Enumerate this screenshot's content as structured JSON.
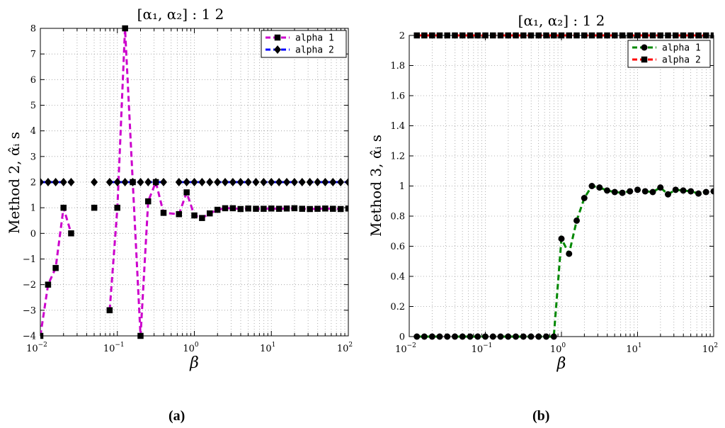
{
  "chart_data": [
    {
      "type": "line",
      "panel_label": "(a)",
      "title": "[α₁, α₂] : 1 2",
      "xlabel": "β",
      "ylabel": "Method 2, α̂ᵢ s",
      "xscale": "log",
      "xlim": [
        0.01,
        100
      ],
      "ylim": [
        -4,
        8
      ],
      "yticks": [
        -4,
        -3,
        -2,
        -1,
        0,
        1,
        2,
        3,
        4,
        5,
        6,
        7,
        8
      ],
      "ytick_labels": [
        "−4",
        "−3",
        "−2",
        "−1",
        "0",
        "1",
        "2",
        "3",
        "4",
        "5",
        "6",
        "7",
        "8"
      ],
      "xtick_labels": [
        {
          "base": "10",
          "exp": "−2"
        },
        {
          "base": "10",
          "exp": "−1"
        },
        {
          "base": "10",
          "exp": "0"
        },
        {
          "base": "10",
          "exp": "1"
        },
        {
          "base": "10",
          "exp": "2"
        }
      ],
      "grid": true,
      "legend_position": "top-right",
      "series": [
        {
          "name": "alpha 1",
          "color": "#cc00cc",
          "marker": "square",
          "x": [
            0.01,
            0.0126,
            0.0158,
            0.02,
            0.0251,
            0.0501,
            0.0794,
            0.1,
            0.1259,
            0.1585,
            0.2,
            0.2512,
            0.3162,
            0.3981,
            0.631,
            0.7943,
            1.0,
            1.2589,
            1.5849,
            1.9953,
            2.5119,
            3.1623,
            3.9811,
            5.0119,
            6.3096,
            7.9433,
            10.0,
            12.5893,
            15.8489,
            19.9526,
            25.1189,
            31.6228,
            39.8107,
            50.1187,
            63.0957,
            79.4328,
            100.0
          ],
          "y": [
            -4,
            -2,
            -1.35,
            1,
            0,
            1,
            -3,
            1,
            8,
            2,
            -4,
            1.25,
            2,
            0.8,
            0.75,
            1.6,
            0.7,
            0.6,
            0.78,
            0.92,
            0.98,
            0.98,
            0.95,
            0.97,
            0.96,
            0.96,
            0.97,
            0.96,
            0.97,
            0.98,
            0.96,
            0.95,
            0.96,
            0.97,
            0.96,
            0.95,
            0.97
          ],
          "line_breaks_after_index": [
            4,
            5
          ]
        },
        {
          "name": "alpha 2",
          "color": "#0000ff",
          "marker": "diamond",
          "x": [
            0.01,
            0.0126,
            0.0158,
            0.02,
            0.0251,
            0.0501,
            0.0794,
            0.1,
            0.1259,
            0.1585,
            0.2,
            0.2512,
            0.3162,
            0.3981,
            0.631,
            0.7943,
            1.0,
            1.2589,
            1.5849,
            1.9953,
            2.5119,
            3.1623,
            3.9811,
            5.0119,
            6.3096,
            7.9433,
            10.0,
            12.5893,
            15.8489,
            19.9526,
            25.1189,
            31.6228,
            39.8107,
            50.1187,
            63.0957,
            79.4328,
            100.0
          ],
          "y": [
            2,
            2,
            2,
            2,
            2,
            2,
            2,
            2,
            2,
            2,
            2,
            2,
            2,
            2,
            2,
            2,
            2,
            2,
            2,
            2,
            2,
            2,
            2,
            2,
            2,
            2,
            2,
            2,
            2,
            2,
            2,
            2,
            2,
            2,
            2,
            2,
            2
          ],
          "line_breaks_after_index": [
            4,
            5,
            13
          ]
        }
      ]
    },
    {
      "type": "line",
      "panel_label": "(b)",
      "title": "[α₁, α₂] : 1 2",
      "xlabel": "β",
      "ylabel": "Method 3, α̂ᵢ s",
      "xscale": "log",
      "xlim": [
        0.01,
        100
      ],
      "ylim": [
        0,
        2
      ],
      "yticks": [
        0,
        0.2,
        0.4,
        0.6,
        0.8,
        1,
        1.2,
        1.4,
        1.6,
        1.8,
        2
      ],
      "ytick_labels": [
        "0",
        "0.2",
        "0.4",
        "0.6",
        "0.8",
        "1",
        "1.2",
        "1.4",
        "1.6",
        "1.8",
        "2"
      ],
      "xtick_labels": [
        {
          "base": "10",
          "exp": "−2"
        },
        {
          "base": "10",
          "exp": "−1"
        },
        {
          "base": "10",
          "exp": "0"
        },
        {
          "base": "10",
          "exp": "1"
        },
        {
          "base": "10",
          "exp": "2"
        }
      ],
      "grid": true,
      "legend_position": "top-right",
      "series": [
        {
          "name": "alpha 1",
          "color": "#008800",
          "marker": "circle",
          "x": [
            0.0126,
            0.0158,
            0.02,
            0.0251,
            0.0316,
            0.0398,
            0.0501,
            0.0631,
            0.0794,
            0.1,
            0.1259,
            0.1585,
            0.1995,
            0.2512,
            0.3162,
            0.3981,
            0.5012,
            0.631,
            0.7943,
            1.0,
            1.2589,
            1.5849,
            1.9953,
            2.5119,
            3.1623,
            3.9811,
            5.0119,
            6.3096,
            7.9433,
            10.0,
            12.5893,
            15.8489,
            19.9526,
            25.1189,
            31.6228,
            39.8107,
            50.1187,
            63.0957,
            79.4328,
            100.0
          ],
          "y": [
            0,
            0,
            0,
            0,
            0,
            0,
            0,
            0,
            0,
            0,
            0,
            0,
            0,
            0,
            0,
            0,
            0,
            0,
            0,
            0.65,
            0.55,
            0.77,
            0.92,
            1.0,
            0.99,
            0.97,
            0.96,
            0.955,
            0.965,
            0.975,
            0.965,
            0.96,
            0.99,
            0.945,
            0.975,
            0.97,
            0.965,
            0.95,
            0.96,
            0.965
          ],
          "line_breaks_after_index": []
        },
        {
          "name": "alpha 2",
          "color": "#ff0000",
          "marker": "square",
          "x": [
            0.0126,
            0.0158,
            0.02,
            0.0251,
            0.0316,
            0.0398,
            0.0501,
            0.0631,
            0.0794,
            0.1,
            0.1259,
            0.1585,
            0.1995,
            0.2512,
            0.3162,
            0.3981,
            0.5012,
            0.631,
            0.7943,
            1.0,
            1.2589,
            1.5849,
            1.9953,
            2.5119,
            3.1623,
            3.9811,
            5.0119,
            6.3096,
            7.9433,
            10.0,
            12.5893,
            15.8489,
            19.9526,
            25.1189,
            31.6228,
            39.8107,
            50.1187,
            63.0957,
            79.4328,
            100.0
          ],
          "y": [
            2,
            2,
            2,
            2,
            2,
            2,
            2,
            2,
            2,
            2,
            2,
            2,
            2,
            2,
            2,
            2,
            2,
            2,
            2,
            2,
            2,
            2,
            2,
            2,
            2,
            2,
            2,
            2,
            2,
            2,
            2,
            2,
            2,
            2,
            2,
            2,
            2,
            2,
            2,
            2
          ],
          "line_breaks_after_index": []
        }
      ]
    }
  ]
}
